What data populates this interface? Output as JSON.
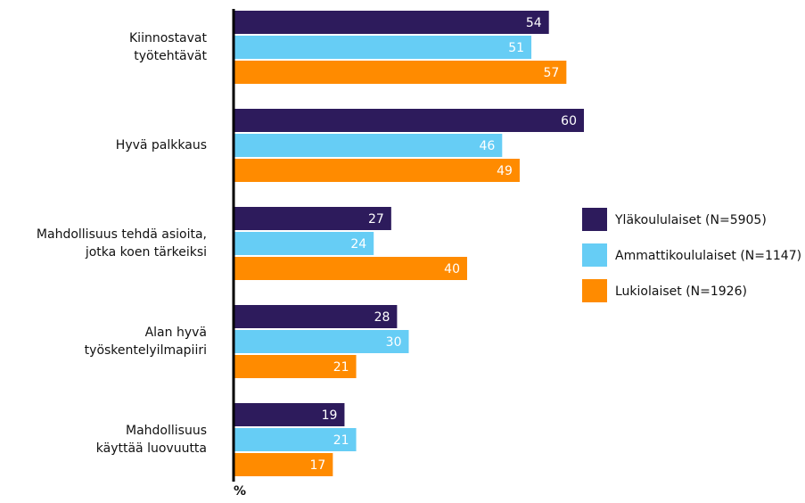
{
  "chart_data": {
    "type": "bar",
    "orientation": "horizontal",
    "categories": [
      [
        "Kiinnostavat",
        "työtehtävät"
      ],
      [
        "Hyvä palkkaus"
      ],
      [
        "Mahdollisuus tehdä asioita,",
        "jotka koen tärkeiksi"
      ],
      [
        "Alan hyvä",
        "työskentelyilmapiiri"
      ],
      [
        "Mahdollisuus",
        "käyttää luovuutta"
      ]
    ],
    "series": [
      {
        "name": "Yläkoululaiset (N=5905)",
        "color": "#2d1b5c",
        "values": [
          54,
          60,
          27,
          28,
          19
        ]
      },
      {
        "name": "Ammattikoululaiset (N=1147)",
        "color": "#66cdf5",
        "values": [
          51,
          46,
          24,
          30,
          21
        ]
      },
      {
        "name": "Lukiolaiset (N=1926)",
        "color": "#ff8b00",
        "values": [
          57,
          49,
          40,
          21,
          17
        ]
      }
    ],
    "xlim": [
      0,
      60
    ],
    "x_label": "%",
    "legend": "right"
  }
}
